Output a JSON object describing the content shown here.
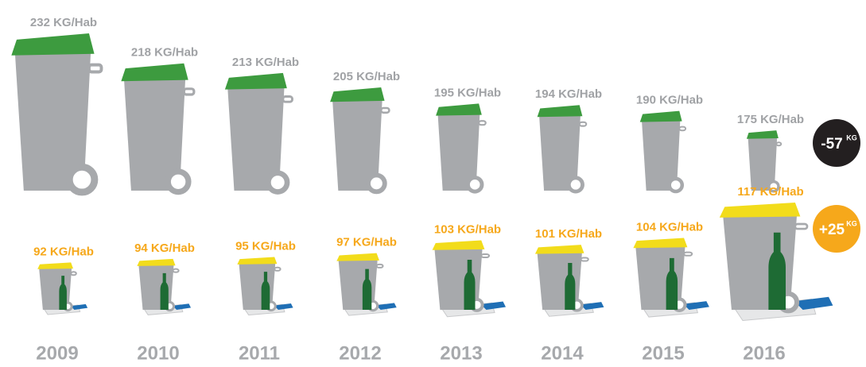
{
  "chart_data": {
    "type": "pictogram",
    "categories": [
      "2009",
      "2010",
      "2011",
      "2012",
      "2013",
      "2014",
      "2015",
      "2016"
    ],
    "series": [
      {
        "color": "#3d9b3f",
        "body_color": "#a7a9ac",
        "label_color": "#a0a2a5",
        "values": [
          232,
          218,
          213,
          205,
          195,
          194,
          190,
          175
        ],
        "value_labels": [
          "232 KG/Hab",
          "218 KG/Hab",
          "213 KG/Hab",
          "205 KG/Hab",
          "195 KG/Hab",
          "194 KG/Hab",
          "190 KG/Hab",
          "175 KG/Hab"
        ]
      },
      {
        "color": "#f2dc1b",
        "body_color": "#a7a9ac",
        "label_color": "#f6a81b",
        "values": [
          92,
          94,
          95,
          97,
          103,
          101,
          104,
          117
        ],
        "value_labels": [
          "92 KG/Hab",
          "94 KG/Hab",
          "95 KG/Hab",
          "97 KG/Hab",
          "103 KG/Hab",
          "101 KG/Hab",
          "104 KG/Hab",
          "117 KG/Hab"
        ]
      }
    ],
    "annotations": [
      {
        "text": "-57",
        "unit": "KG",
        "color": "#231f20"
      },
      {
        "text": "+25",
        "unit": "KG",
        "color": "#f6a81b"
      }
    ]
  }
}
